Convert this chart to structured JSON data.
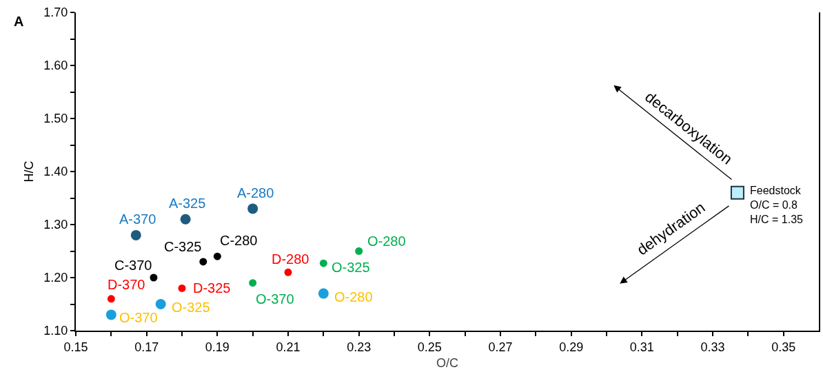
{
  "chart_data": {
    "type": "scatter",
    "xlabel": "O/C",
    "ylabel": "H/C",
    "xlim": [
      0.15,
      0.36
    ],
    "xticks": [
      0.15,
      {
        "value": 0.16,
        "label": null
      },
      0.17,
      {
        "value": 0.18,
        "label": null
      },
      0.19,
      {
        "value": 0.2,
        "label": null
      },
      0.21,
      {
        "value": 0.22,
        "label": null
      },
      0.23,
      {
        "value": 0.24,
        "label": null
      },
      0.25,
      {
        "value": 0.26,
        "label": null
      },
      0.27,
      {
        "value": 0.28,
        "label": null
      },
      0.29,
      {
        "value": 0.3,
        "label": null
      },
      0.31,
      {
        "value": 0.32,
        "label": null
      },
      0.33,
      {
        "value": 0.34,
        "label": null
      },
      0.35
    ],
    "ylim": [
      1.1,
      1.7
    ],
    "yticks": [
      {
        "value": 1.1,
        "label": "1.10"
      },
      {
        "value": 1.15,
        "label": null
      },
      {
        "value": 1.2,
        "label": "1.20"
      },
      {
        "value": 1.25,
        "label": null
      },
      {
        "value": 1.3,
        "label": "1.30"
      },
      {
        "value": 1.35,
        "label": null
      },
      {
        "value": 1.4,
        "label": "1.40"
      },
      {
        "value": 1.45,
        "label": null
      },
      {
        "value": 1.5,
        "label": "1.50"
      },
      {
        "value": 1.55,
        "label": null
      },
      {
        "value": 1.6,
        "label": "1.60"
      },
      {
        "value": 1.65,
        "label": null
      },
      {
        "value": 1.7,
        "label": "1.70"
      }
    ],
    "grid": false,
    "marker": "circle",
    "series": [
      {
        "color": "#1d5c7e",
        "x": [
          0.2,
          0.181,
          0.167
        ],
        "values": [
          1.33,
          1.31,
          1.28
        ]
      },
      {
        "color": "#000000",
        "x": [
          0.19,
          0.186,
          0.172
        ],
        "values": [
          1.24,
          1.23,
          1.2
        ]
      },
      {
        "color": "#ff0000",
        "x": [
          0.21,
          0.18,
          0.16
        ],
        "values": [
          1.21,
          1.18,
          1.16
        ]
      },
      {
        "color": "#00b050",
        "x": [
          0.23,
          0.22,
          0.2
        ],
        "values": [
          1.25,
          1.227,
          1.19
        ]
      },
      {
        "color": "#19a0dc",
        "x": [
          0.22,
          0.174,
          0.16
        ],
        "values": [
          1.17,
          1.15,
          1.13
        ]
      },
      {
        "color": "#bdeefc",
        "marker": "square",
        "x": [
          0.337
        ],
        "values": [
          1.36
        ]
      }
    ],
    "annotations": [
      "A",
      "decarboxylation",
      "dehydration",
      {
        "text": "Feedstock\nO/C = 0.8\nH/C = 1.35",
        "x": 0.337,
        "y": 1.36
      },
      {
        "text": "A-280",
        "x": 0.2,
        "y": 1.33
      },
      {
        "text": "A-325",
        "x": 0.181,
        "y": 1.31
      },
      {
        "text": "A-370",
        "x": 0.167,
        "y": 1.28
      },
      {
        "text": "C-280",
        "x": 0.19,
        "y": 1.24
      },
      {
        "text": "C-325",
        "x": 0.186,
        "y": 1.23
      },
      {
        "text": "C-370",
        "x": 0.172,
        "y": 1.2
      },
      {
        "text": "D-280",
        "x": 0.21,
        "y": 1.21
      },
      {
        "text": "D-325",
        "x": 0.18,
        "y": 1.18
      },
      {
        "text": "D-370",
        "x": 0.16,
        "y": 1.16
      },
      {
        "text": "O-280",
        "x": 0.23,
        "y": 1.25
      },
      {
        "text": "O-325",
        "x": 0.22,
        "y": 1.227
      },
      {
        "text": "O-370",
        "x": 0.2,
        "y": 1.19
      },
      {
        "text": "O-280",
        "x": 0.22,
        "y": 1.17
      },
      {
        "text": "O-325",
        "x": 0.174,
        "y": 1.15
      },
      {
        "text": "O-370",
        "x": 0.16,
        "y": 1.13
      }
    ]
  }
}
